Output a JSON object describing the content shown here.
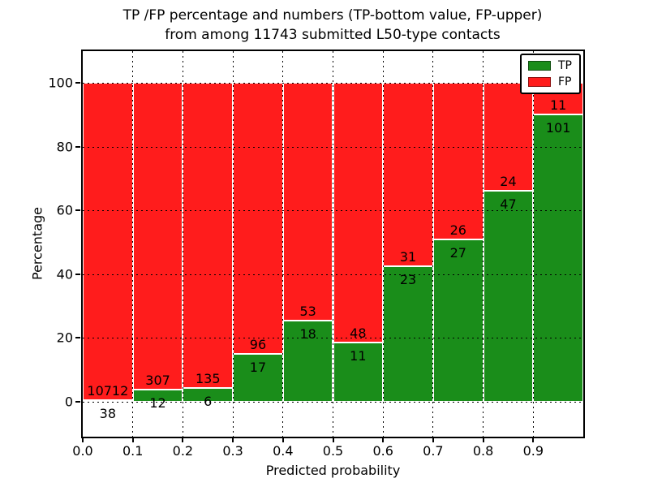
{
  "chart_data": {
    "type": "bar",
    "stacked": true,
    "title_line1": "TP /FP percentage and numbers (TP-bottom value, FP-upper)",
    "title_line2": "from among 11743 submitted L50-type contacts",
    "title": "TP /FP percentage and numbers (TP-bottom value, FP-upper) from among 11743 submitted L50-type contacts",
    "xlabel": "Predicted probability",
    "ylabel": "Percentage",
    "xlim": [
      0.0,
      1.0
    ],
    "ylim": [
      -11,
      110
    ],
    "grid": "dotted",
    "legend_position": "upper-right",
    "total_contacts": 11743,
    "x_tick_labels": [
      "0.0",
      "0.1",
      "0.2",
      "0.3",
      "0.4",
      "0.5",
      "0.6",
      "0.7",
      "0.8",
      "0.9"
    ],
    "y_tick_labels": [
      "0",
      "20",
      "40",
      "60",
      "80",
      "100"
    ],
    "y_tick_values": [
      0,
      20,
      40,
      60,
      80,
      100
    ],
    "bin_edges": [
      0.0,
      0.1,
      0.2,
      0.3,
      0.4,
      0.5,
      0.6,
      0.7,
      0.8,
      0.9,
      1.0
    ],
    "series": [
      {
        "name": "TP",
        "color": "#1a8d1a",
        "counts": [
          38,
          12,
          6,
          17,
          18,
          11,
          23,
          27,
          47,
          101
        ]
      },
      {
        "name": "FP",
        "color": "#ff1c1c",
        "counts": [
          10712,
          307,
          135,
          96,
          53,
          48,
          31,
          26,
          24,
          11
        ]
      }
    ],
    "tp_percent_of_bin": [
      0.35,
      3.76,
      4.26,
      15.04,
      25.35,
      18.64,
      42.59,
      50.94,
      66.2,
      90.18
    ]
  },
  "legend": {
    "entries": [
      {
        "label": "TP",
        "color": "#1a8d1a"
      },
      {
        "label": "FP",
        "color": "#ff1c1c"
      }
    ]
  },
  "colors": {
    "tp_green": "#1a8d1a",
    "fp_red": "#ff1c1c",
    "bar_edge": "#ffffff",
    "grid": "#000000",
    "background": "#ffffff",
    "text": "#000000"
  }
}
